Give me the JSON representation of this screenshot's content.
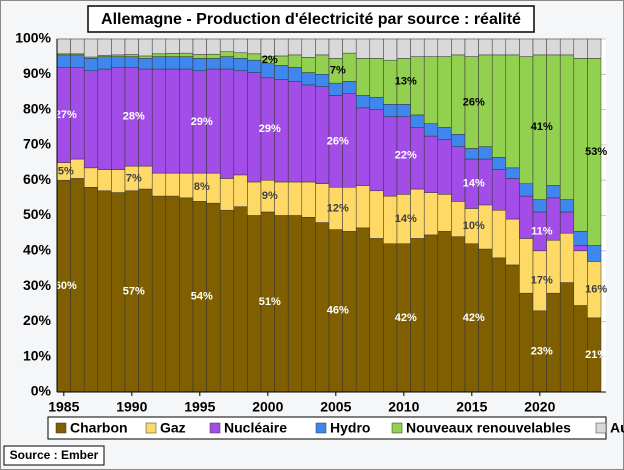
{
  "chart_data": {
    "type": "stacked_bar",
    "title": "Allemagne - Production d'électricité par source : réalité",
    "source": "Source : Ember",
    "x": [
      1985,
      1986,
      1987,
      1988,
      1989,
      1990,
      1991,
      1992,
      1993,
      1994,
      1995,
      1996,
      1997,
      1998,
      1999,
      2000,
      2001,
      2002,
      2003,
      2004,
      2005,
      2006,
      2007,
      2008,
      2009,
      2010,
      2011,
      2012,
      2013,
      2014,
      2015,
      2016,
      2017,
      2018,
      2019,
      2020,
      2021,
      2022,
      2023,
      2024
    ],
    "xlim": [
      1984.5,
      2024.5
    ],
    "xticks": [
      1985,
      1990,
      1995,
      2000,
      2005,
      2010,
      2015,
      2020
    ],
    "ylim": [
      0,
      100
    ],
    "yticks": [
      {
        "value": 0,
        "label": "0%"
      },
      {
        "value": 10,
        "label": "10%"
      },
      {
        "value": 20,
        "label": "20%"
      },
      {
        "value": 30,
        "label": "30%"
      },
      {
        "value": 40,
        "label": "40%"
      },
      {
        "value": 50,
        "label": "50%"
      },
      {
        "value": 60,
        "label": "60%"
      },
      {
        "value": 70,
        "label": "70%"
      },
      {
        "value": 80,
        "label": "80%"
      },
      {
        "value": 90,
        "label": "90%"
      },
      {
        "value": 100,
        "label": "100%"
      }
    ],
    "grid": true,
    "legend": "bottom",
    "series": [
      {
        "name": "Charbon",
        "color": "#7f5f00",
        "label_color": "#ffffff",
        "values": [
          60,
          60.5,
          58,
          57,
          56.5,
          57,
          57.5,
          55.5,
          55.5,
          55,
          54,
          53.5,
          51.5,
          52.5,
          50,
          51,
          50,
          50,
          49.5,
          48,
          46,
          45.5,
          46.5,
          43.5,
          42,
          42,
          43.5,
          44.5,
          45.5,
          44,
          42,
          40.5,
          38,
          36,
          28,
          23,
          28,
          31,
          24.5,
          21
        ],
        "value_labels": [
          "60%",
          null,
          null,
          null,
          null,
          "57%",
          null,
          null,
          null,
          null,
          "54%",
          null,
          null,
          null,
          null,
          "51%",
          null,
          null,
          null,
          null,
          "46%",
          null,
          null,
          null,
          null,
          "42%",
          null,
          null,
          null,
          null,
          "42%",
          null,
          null,
          null,
          null,
          "23%",
          null,
          null,
          null,
          "21%"
        ]
      },
      {
        "name": "Gaz",
        "color": "#ffd966",
        "label_color": "#404040",
        "values": [
          5,
          5.5,
          5.5,
          6,
          6.5,
          7,
          6.5,
          6.5,
          6.5,
          7,
          8,
          8.5,
          9,
          9,
          9.5,
          9,
          9.5,
          9.5,
          10,
          11,
          12,
          12.5,
          12,
          13.5,
          13.5,
          14,
          14,
          12,
          10.5,
          10,
          10,
          12.5,
          13.5,
          13,
          15.5,
          17,
          15,
          14,
          15.5,
          16
        ],
        "value_labels": [
          "5%",
          null,
          null,
          null,
          null,
          "7%",
          null,
          null,
          null,
          null,
          "8%",
          null,
          null,
          null,
          null,
          "9%",
          null,
          null,
          null,
          null,
          "12%",
          null,
          null,
          null,
          null,
          "14%",
          null,
          null,
          null,
          null,
          "10%",
          null,
          null,
          null,
          null,
          "17%",
          null,
          null,
          null,
          "16%"
        ]
      },
      {
        "name": "Nucléaire",
        "color": "#a24de8",
        "label_color": "#ffffff",
        "values": [
          27,
          26,
          27.5,
          28.5,
          29,
          28,
          27.5,
          29.5,
          29.5,
          29.5,
          29,
          29.5,
          31,
          29.5,
          31,
          29,
          29,
          28.5,
          27.5,
          27.5,
          26,
          26.5,
          22,
          23,
          22.5,
          22,
          17.5,
          16,
          15.5,
          15.5,
          14,
          13,
          11.5,
          11.5,
          12,
          11,
          12,
          6,
          1.5,
          0
        ],
        "value_labels": [
          "27%",
          null,
          null,
          null,
          null,
          "28%",
          null,
          null,
          null,
          null,
          "29%",
          null,
          null,
          null,
          null,
          "29%",
          null,
          null,
          null,
          null,
          "26%",
          null,
          null,
          null,
          null,
          "22%",
          null,
          null,
          null,
          null,
          "14%",
          null,
          null,
          null,
          null,
          "11%",
          null,
          null,
          null,
          null
        ]
      },
      {
        "name": "Hydro",
        "color": "#3f86ee",
        "label_color": "#ffffff",
        "values": [
          3.5,
          3.5,
          3.5,
          3.5,
          3,
          3,
          3,
          3.5,
          3.5,
          3.5,
          3.5,
          3,
          3.5,
          3.5,
          3.5,
          4,
          4,
          4,
          3.5,
          3.5,
          3.5,
          3.5,
          3.5,
          3.5,
          3.5,
          3.5,
          3.5,
          3.5,
          3.5,
          3.5,
          3,
          3.5,
          3.5,
          3,
          3.5,
          3.5,
          3.5,
          3.5,
          4,
          4.5
        ]
      },
      {
        "name": "Nouveaux renouvelables",
        "color": "#92d050",
        "label_color": "#000000",
        "values": [
          0.3,
          0.3,
          0.4,
          0.4,
          0.5,
          0.6,
          0.7,
          0.8,
          0.9,
          1,
          1.1,
          1.2,
          1.4,
          1.6,
          1.8,
          2,
          2.7,
          3.5,
          4.3,
          5.5,
          7,
          8,
          10.5,
          11,
          12.5,
          13,
          16.5,
          19,
          20,
          22.5,
          26,
          26,
          29,
          32,
          36,
          41,
          37,
          41,
          49,
          53
        ],
        "value_labels": [
          null,
          null,
          null,
          null,
          null,
          null,
          null,
          null,
          null,
          null,
          null,
          null,
          null,
          null,
          null,
          "2%",
          null,
          null,
          null,
          null,
          "7%",
          null,
          null,
          null,
          null,
          "13%",
          null,
          null,
          null,
          null,
          "26%",
          null,
          null,
          null,
          null,
          "41%",
          null,
          null,
          null,
          "53%"
        ]
      },
      {
        "name": "Autres",
        "color": "#d9d9d9",
        "label_color": "#000000",
        "values": [
          4.2,
          4.2,
          5.1,
          4.6,
          4.5,
          4.4,
          4.8,
          4.2,
          4.1,
          4,
          4.4,
          4.3,
          3.6,
          3.9,
          4.2,
          5,
          4.8,
          4.5,
          5.2,
          4.5,
          5.5,
          4,
          5.5,
          5.5,
          6,
          5.5,
          5,
          5,
          5,
          4.5,
          5,
          4.5,
          4.5,
          4.5,
          5,
          4.5,
          4.5,
          4.5,
          5.5,
          5.5
        ]
      }
    ]
  }
}
